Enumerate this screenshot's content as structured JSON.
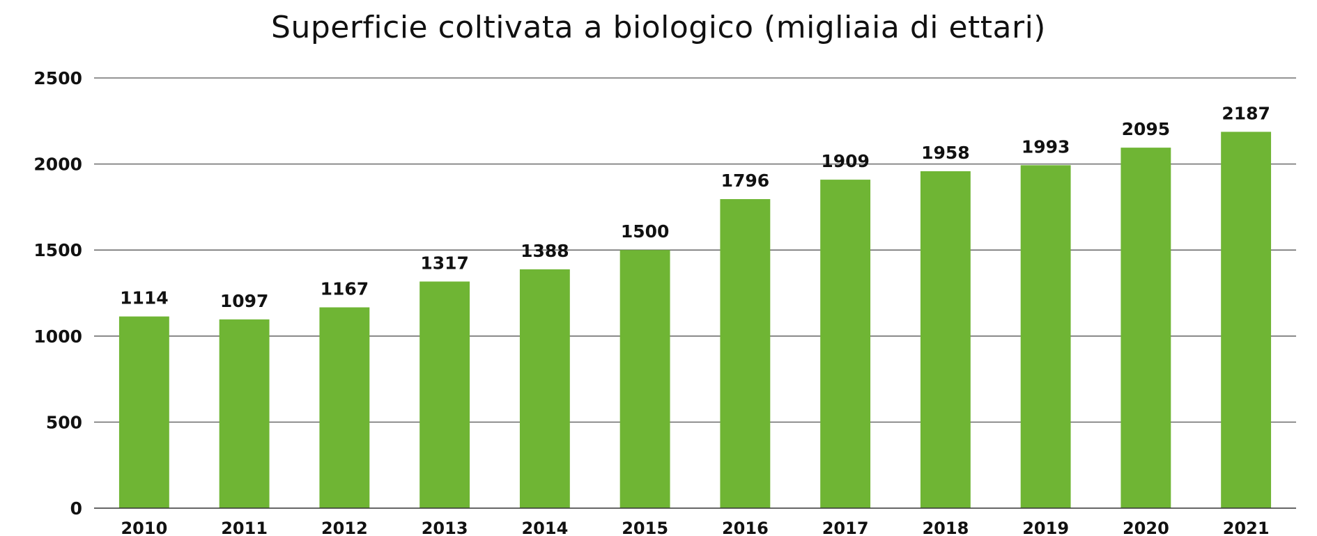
{
  "chart_data": {
    "type": "bar",
    "title": "Superficie coltivata a biologico (migliaia di ettari)",
    "xlabel": "",
    "ylabel": "",
    "ylim": [
      0,
      2500
    ],
    "yticks": [
      0,
      500,
      1000,
      1500,
      2000,
      2500
    ],
    "grid": true,
    "legend": "none",
    "categories": [
      "2010",
      "2011",
      "2012",
      "2013",
      "2014",
      "2015",
      "2016",
      "2017",
      "2018",
      "2019",
      "2020",
      "2021"
    ],
    "series": [
      {
        "name": "Superficie coltivata a biologico",
        "values": [
          1114,
          1097,
          1167,
          1317,
          1388,
          1500,
          1796,
          1909,
          1958,
          1993,
          2095,
          2187
        ],
        "color": "#6fb534"
      }
    ]
  }
}
